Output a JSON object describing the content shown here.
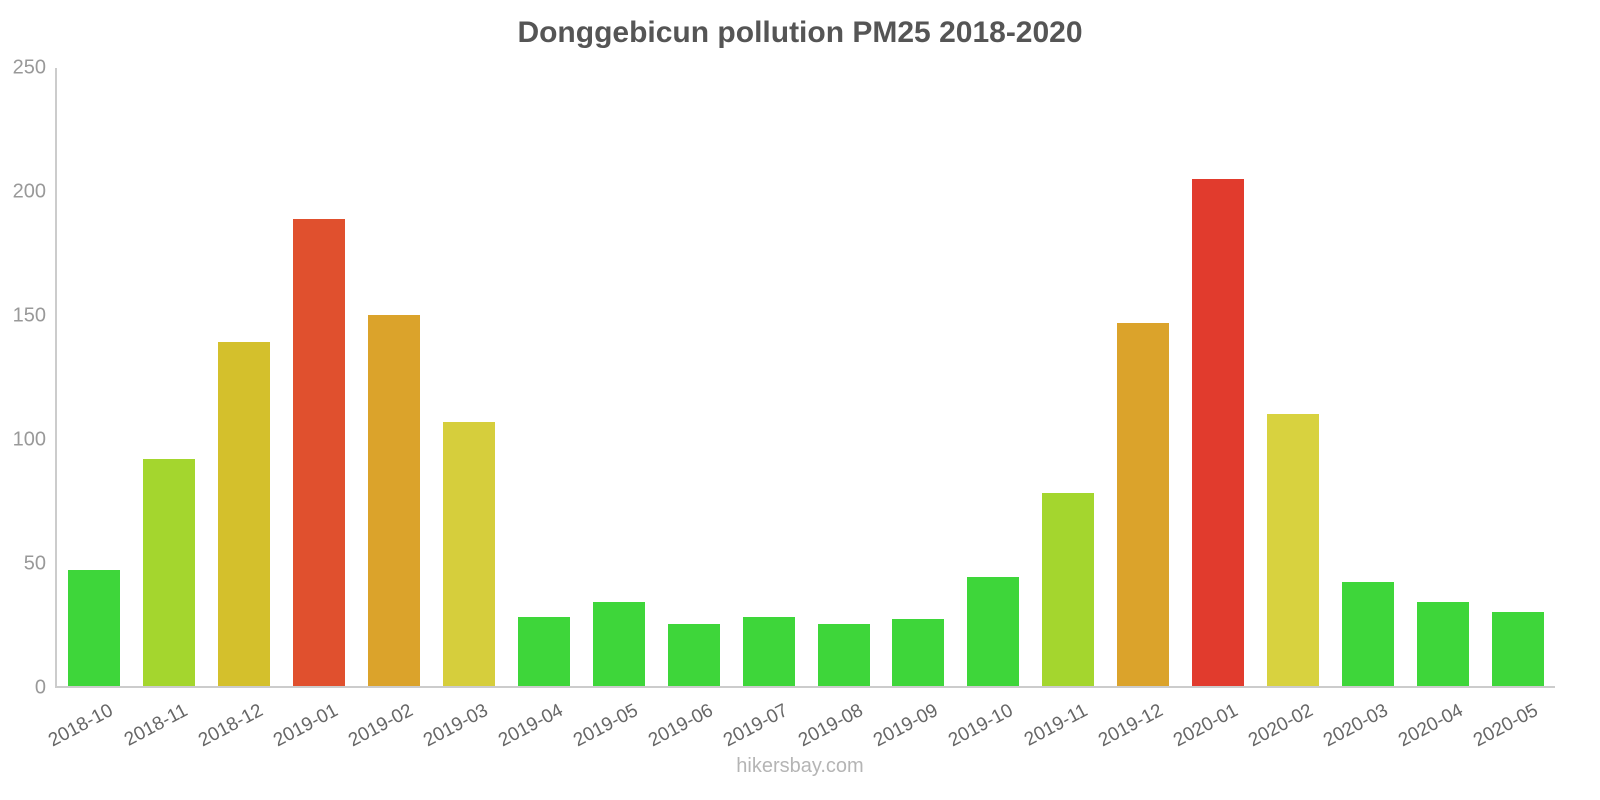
{
  "title": "Donggebicun pollution PM25 2018-2020",
  "footer": "hikersbay.com",
  "chart_data": {
    "type": "bar",
    "title": "Donggebicun pollution PM25 2018-2020",
    "categories": [
      "2018-10",
      "2018-11",
      "2018-12",
      "2019-01",
      "2019-02",
      "2019-03",
      "2019-04",
      "2019-05",
      "2019-06",
      "2019-07",
      "2019-08",
      "2019-09",
      "2019-10",
      "2019-11",
      "2019-12",
      "2020-01",
      "2020-02",
      "2020-03",
      "2020-04",
      "2020-05"
    ],
    "values": [
      47,
      92,
      139,
      189,
      150,
      107,
      28,
      34,
      25,
      28,
      25,
      27,
      44,
      78,
      147,
      205,
      110,
      42,
      34,
      30
    ],
    "colors": [
      "#3ed63a",
      "#a4d62e",
      "#d4c02c",
      "#e0502e",
      "#dba32b",
      "#d6ce3c",
      "#3ed63a",
      "#3ed63a",
      "#3ed63a",
      "#3ed63a",
      "#3ed63a",
      "#3ed63a",
      "#3ed63a",
      "#a4d62e",
      "#dba32b",
      "#e13b2d",
      "#d8d23f",
      "#3ed63a",
      "#3ed63a",
      "#3ed63a"
    ],
    "xlabel": "",
    "ylabel": "",
    "ylim": [
      0,
      250
    ],
    "yticks": [
      0,
      50,
      100,
      150,
      200,
      250
    ],
    "grid": false,
    "legend_position": "none"
  }
}
